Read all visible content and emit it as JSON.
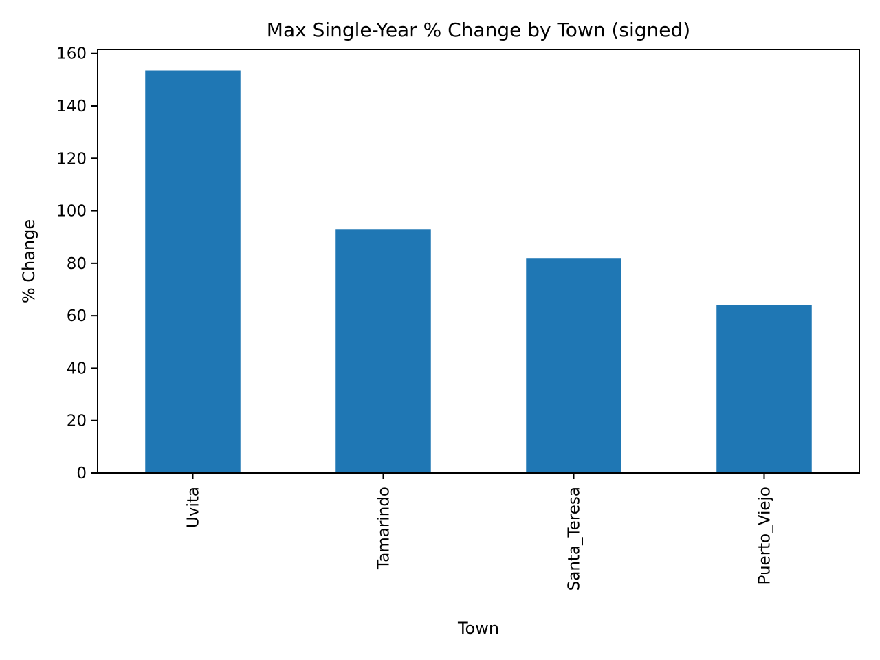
{
  "chart_data": {
    "type": "bar",
    "title": "Max Single-Year % Change by Town (signed)",
    "xlabel": "Town",
    "ylabel": "% Change",
    "categories": [
      "Uvita",
      "Tamarindo",
      "Santa_Teresa",
      "Puerto_Viejo"
    ],
    "values": [
      153.5,
      93.0,
      82.0,
      64.2
    ],
    "ylim": [
      0,
      161.5
    ],
    "yticks": [
      0,
      20,
      40,
      60,
      80,
      100,
      120,
      140,
      160
    ],
    "grid": false,
    "legend": false,
    "bar_color": "#1f77b4",
    "tick_label_rotation": "vertical"
  }
}
